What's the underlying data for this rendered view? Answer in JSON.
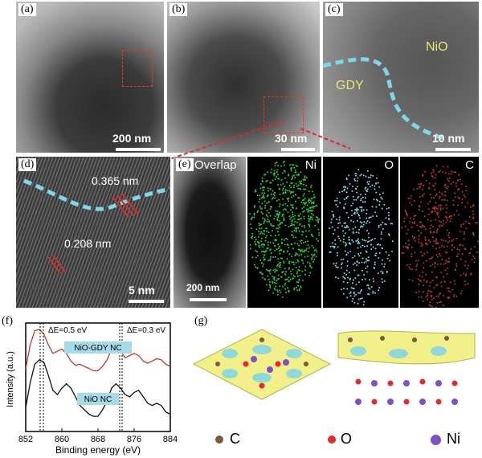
{
  "panels": {
    "a": {
      "label": "(a)",
      "scale": "200 nm"
    },
    "b": {
      "label": "(b)",
      "scale": "30 nm"
    },
    "c": {
      "label": "(c)",
      "scale": "10 nm",
      "text_nio": "NiO",
      "text_gdy": "GDY"
    },
    "d": {
      "label": "(d)",
      "scale": "5 nm",
      "d1": "0.365 nm",
      "d2": "0.208 nm"
    },
    "e": {
      "label": "(e)",
      "overlap": "Overlap",
      "ni": "Ni",
      "o": "O",
      "c": "C",
      "scale": "200 nm"
    },
    "f": {
      "label": "(f)"
    },
    "g": {
      "label": "(g)",
      "legend": [
        "C",
        "O",
        "Ni"
      ]
    }
  },
  "chart_data": {
    "type": "line",
    "xlabel": "Binding energy (eV)",
    "ylabel": "Intensity (a.u.)",
    "xlim": [
      852,
      884
    ],
    "xticks": [
      "852",
      "860",
      "868",
      "876",
      "884"
    ],
    "annotations": [
      "ΔE=0.5 eV",
      "ΔE=0.3 eV"
    ],
    "series": [
      {
        "name": "NiO-GDY NC",
        "color": "#c0392b",
        "x": [
          852,
          853,
          854,
          855,
          856,
          857,
          858,
          859,
          860,
          861,
          862,
          863,
          864,
          865,
          866,
          867,
          868,
          869,
          870,
          871,
          872,
          873,
          874,
          875,
          876,
          877,
          878,
          879,
          880,
          881,
          882,
          883,
          884
        ],
        "y": [
          0.58,
          0.8,
          0.93,
          0.94,
          0.9,
          0.8,
          0.72,
          0.74,
          0.76,
          0.72,
          0.65,
          0.61,
          0.62,
          0.6,
          0.58,
          0.56,
          0.56,
          0.6,
          0.66,
          0.76,
          0.82,
          0.74,
          0.68,
          0.7,
          0.72,
          0.7,
          0.65,
          0.63,
          0.65,
          0.67,
          0.66,
          0.62,
          0.6
        ]
      },
      {
        "name": "NiO NC",
        "color": "#111111",
        "x": [
          852,
          853,
          854,
          855,
          856,
          857,
          858,
          859,
          860,
          861,
          862,
          863,
          864,
          865,
          866,
          867,
          868,
          869,
          870,
          871,
          872,
          873,
          874,
          875,
          876,
          877,
          878,
          879,
          880,
          881,
          882,
          883,
          884
        ],
        "y": [
          0.22,
          0.45,
          0.62,
          0.66,
          0.64,
          0.52,
          0.38,
          0.34,
          0.4,
          0.44,
          0.4,
          0.32,
          0.24,
          0.2,
          0.16,
          0.14,
          0.14,
          0.2,
          0.28,
          0.4,
          0.44,
          0.4,
          0.34,
          0.32,
          0.36,
          0.38,
          0.32,
          0.26,
          0.24,
          0.26,
          0.24,
          0.18,
          0.16
        ]
      }
    ]
  },
  "colors": {
    "red": "#c0392b",
    "cyan": "#7fd6e6",
    "green": "#2ecc40",
    "ocean": "#a7dbe8"
  }
}
